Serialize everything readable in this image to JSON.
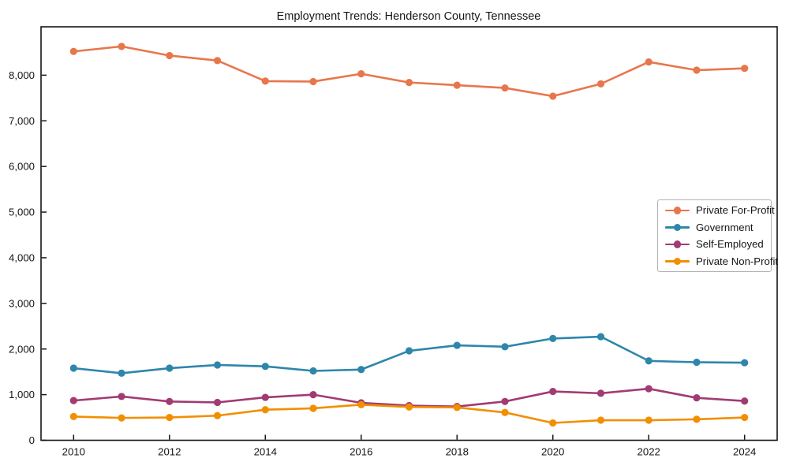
{
  "figure": {
    "background": "#ffffff",
    "axis_color": "#151515",
    "text_color": "#151515"
  },
  "chart_data": {
    "type": "line",
    "title": "Employment Trends: Henderson County, Tennessee",
    "xlabel": "",
    "ylabel": "",
    "x": [
      2010,
      2011,
      2012,
      2013,
      2014,
      2015,
      2016,
      2017,
      2018,
      2019,
      2020,
      2021,
      2022,
      2023,
      2024
    ],
    "series": [
      {
        "name": "Private For-Profit",
        "color": "#E8764C",
        "values": [
          8520,
          8630,
          8430,
          8320,
          7870,
          7860,
          8030,
          7840,
          7780,
          7720,
          7540,
          7810,
          8290,
          8110,
          8150
        ]
      },
      {
        "name": "Government",
        "color": "#2E86AB",
        "values": [
          1580,
          1470,
          1580,
          1650,
          1620,
          1520,
          1550,
          1960,
          2080,
          2050,
          2230,
          2270,
          1740,
          1710,
          1700
        ]
      },
      {
        "name": "Self-Employed",
        "color": "#A23B72",
        "values": [
          870,
          960,
          850,
          830,
          940,
          1000,
          820,
          760,
          740,
          850,
          1070,
          1030,
          1130,
          930,
          860
        ]
      },
      {
        "name": "Private Non-Profit",
        "color": "#F18F01",
        "values": [
          520,
          490,
          500,
          540,
          670,
          700,
          780,
          730,
          720,
          610,
          380,
          440,
          440,
          460,
          500
        ]
      }
    ],
    "xlim": [
      2009.32,
      2024.68
    ],
    "ylim": [
      0,
      9060
    ],
    "xticks": [
      2010,
      2012,
      2014,
      2016,
      2018,
      2020,
      2022,
      2024
    ],
    "yticks": [
      0,
      1000,
      2000,
      3000,
      4000,
      5000,
      6000,
      7000,
      8000
    ],
    "grid": false,
    "legend_position": "center-right",
    "legend_labels": [
      "Private For-Profit",
      "Government",
      "Self-Employed",
      "Private Non-Profit"
    ]
  }
}
